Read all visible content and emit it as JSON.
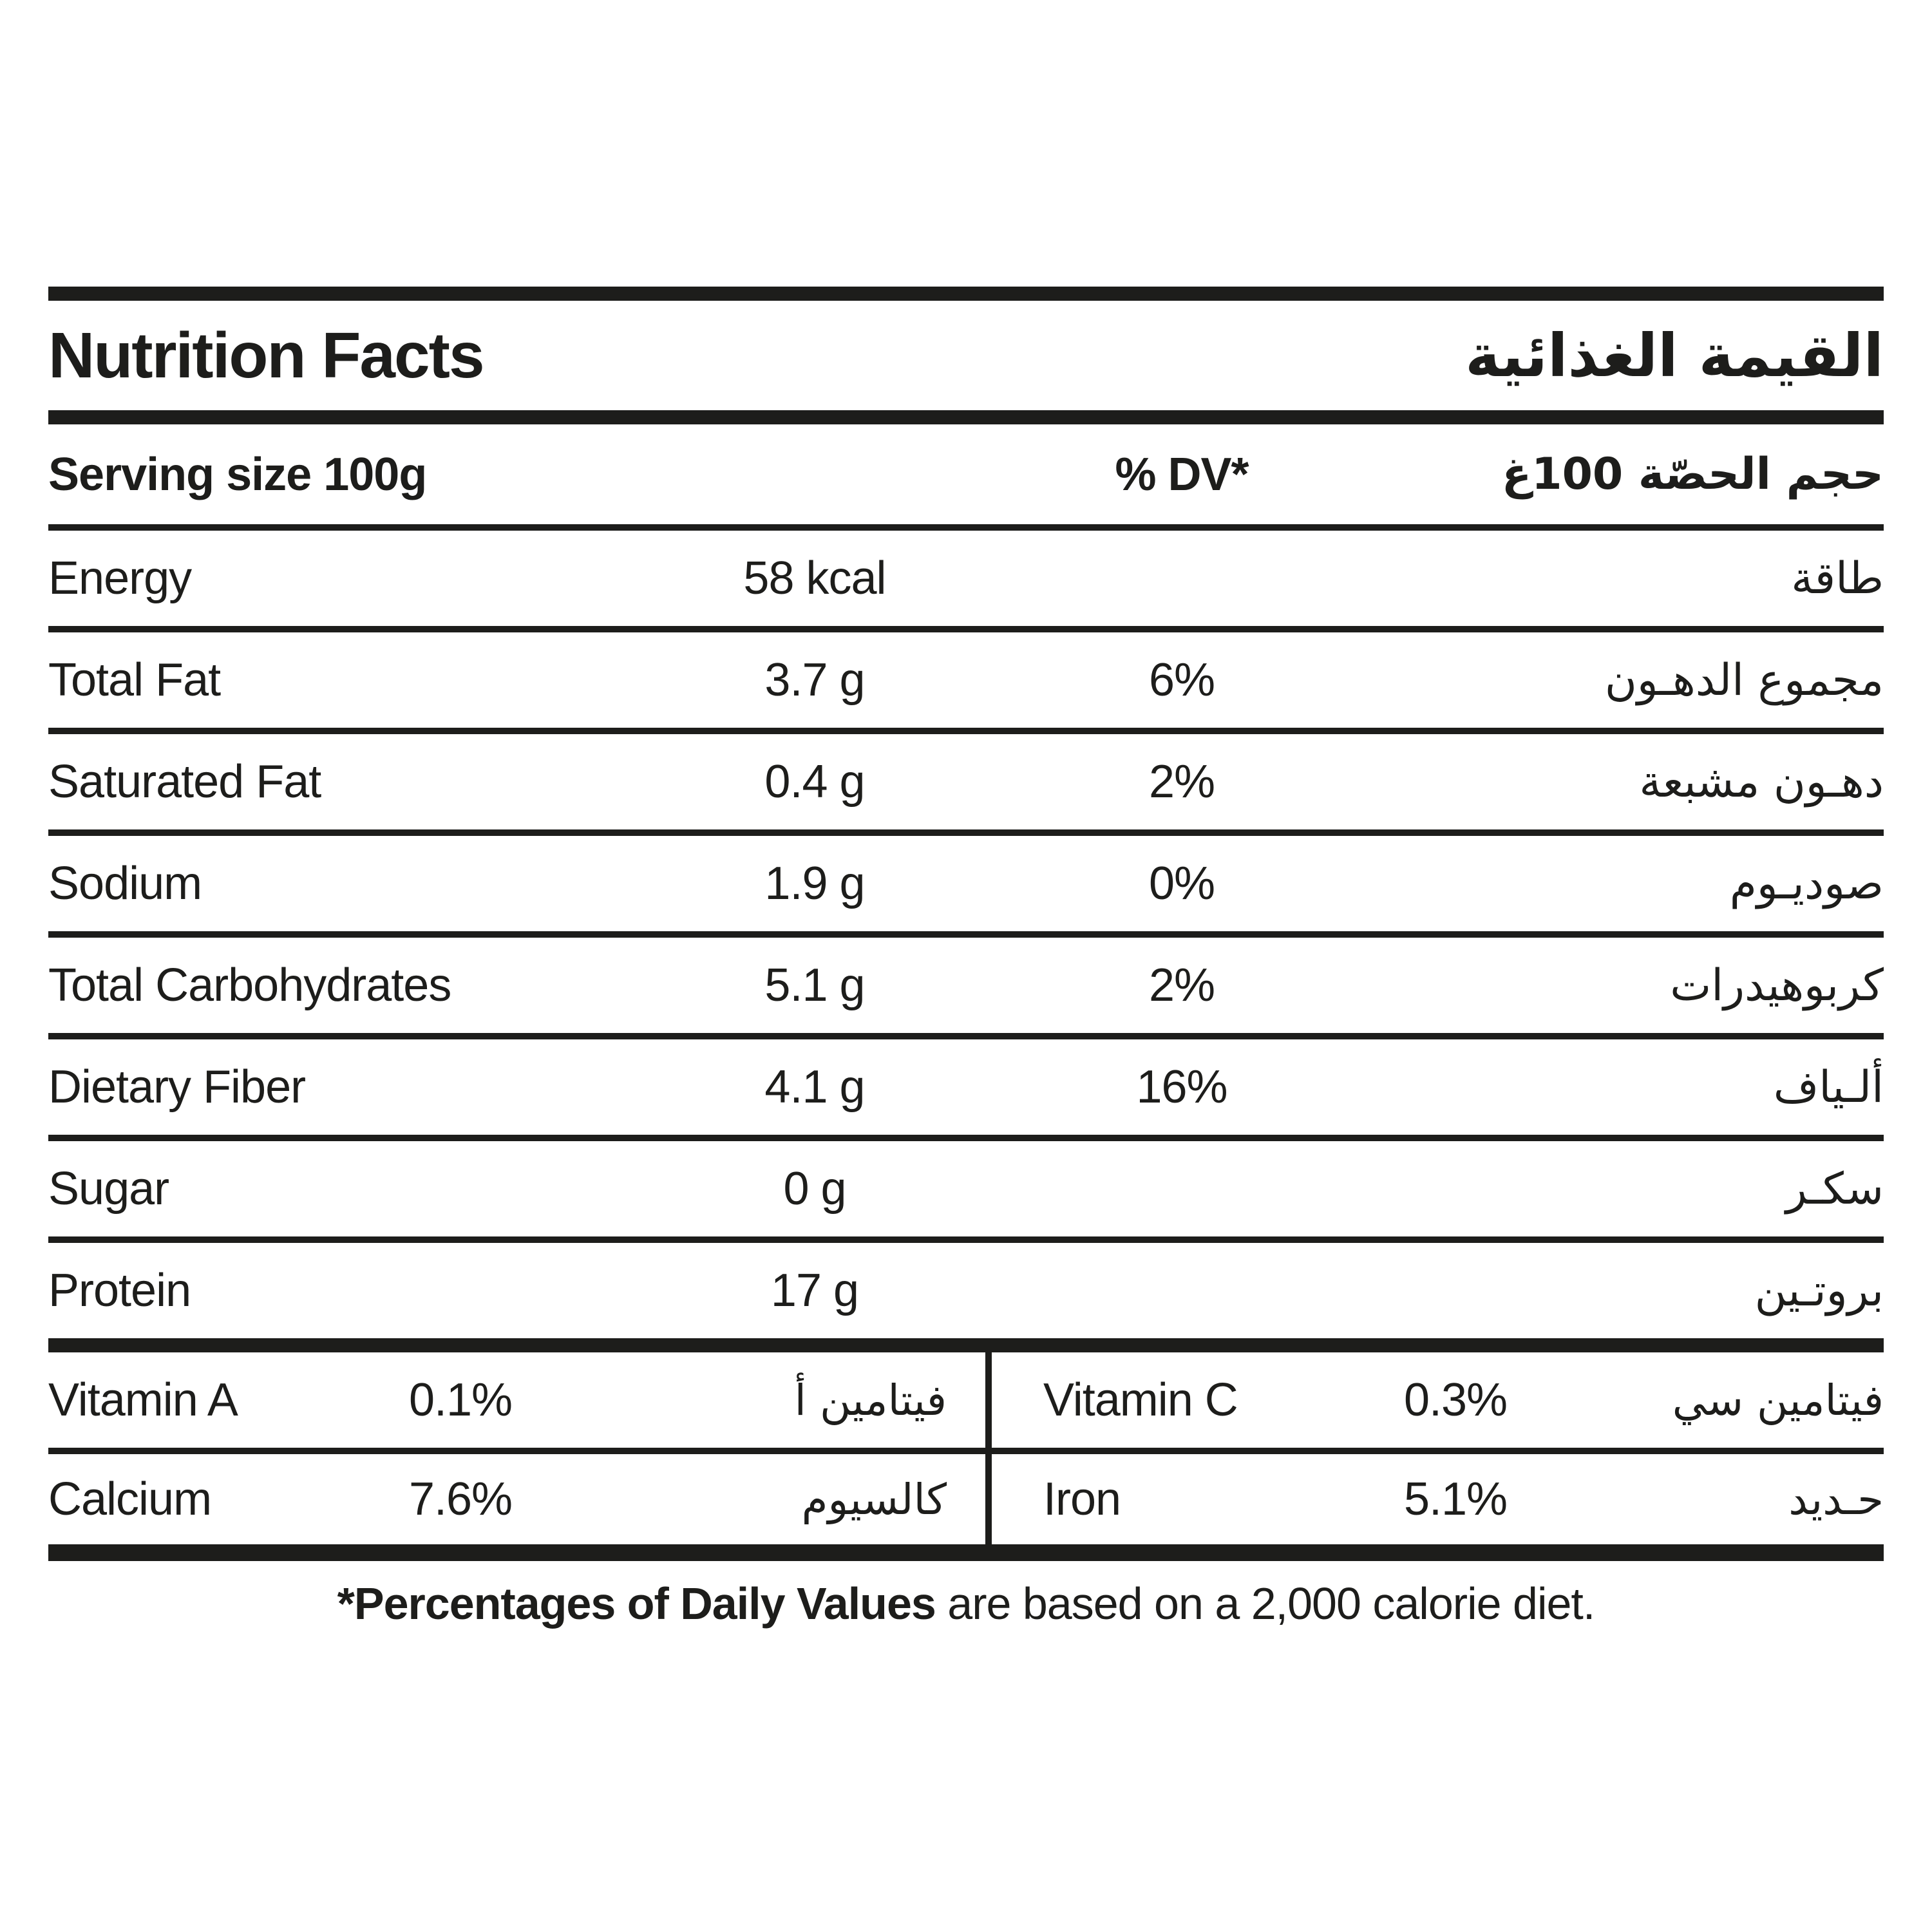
{
  "header": {
    "title_en": "Nutrition Facts",
    "title_ar": "القيمة الغذائية"
  },
  "serving": {
    "label_en": "Serving size 100g",
    "dv_header": "% DV*",
    "label_ar": "حجم الحصّة 100غ"
  },
  "rows": [
    {
      "en": "Energy",
      "value": "58 kcal",
      "dv": "",
      "ar": "طاقة"
    },
    {
      "en": "Total Fat",
      "value": "3.7 g",
      "dv": "6%",
      "ar": "مجموع الدهـون"
    },
    {
      "en": "Saturated Fat",
      "value": "0.4 g",
      "dv": "2%",
      "ar": "دهـون مشبعة"
    },
    {
      "en": "Sodium",
      "value": "1.9 g",
      "dv": "0%",
      "ar": "صوديـوم"
    },
    {
      "en": "Total Carbohydrates",
      "value": "5.1 g",
      "dv": "2%",
      "ar": "كربوهيدرات"
    },
    {
      "en": "Dietary Fiber",
      "value": "4.1 g",
      "dv": "16%",
      "ar": "ألـياف"
    },
    {
      "en": "Sugar",
      "value": "0 g",
      "dv": "",
      "ar": "سكـر"
    },
    {
      "en": "Protein",
      "value": "17 g",
      "dv": "",
      "ar": "بروتـين"
    }
  ],
  "micros": {
    "left": [
      {
        "en": "Vitamin A",
        "value": "0.1%",
        "ar": "فيتامين أ"
      },
      {
        "en": "Calcium",
        "value": "7.6%",
        "ar": "كالسيوم"
      }
    ],
    "right": [
      {
        "en": "Vitamin C",
        "value": "0.3%",
        "ar": "فيتامين سي"
      },
      {
        "en": "Iron",
        "value": "5.1%",
        "ar": "حـديد"
      }
    ]
  },
  "footnote": {
    "bold": "*Percentages of Daily Values",
    "rest": " are based on a 2,000 calorie diet."
  },
  "colors": {
    "ink": "#1d1d1b",
    "background": "#ffffff"
  }
}
